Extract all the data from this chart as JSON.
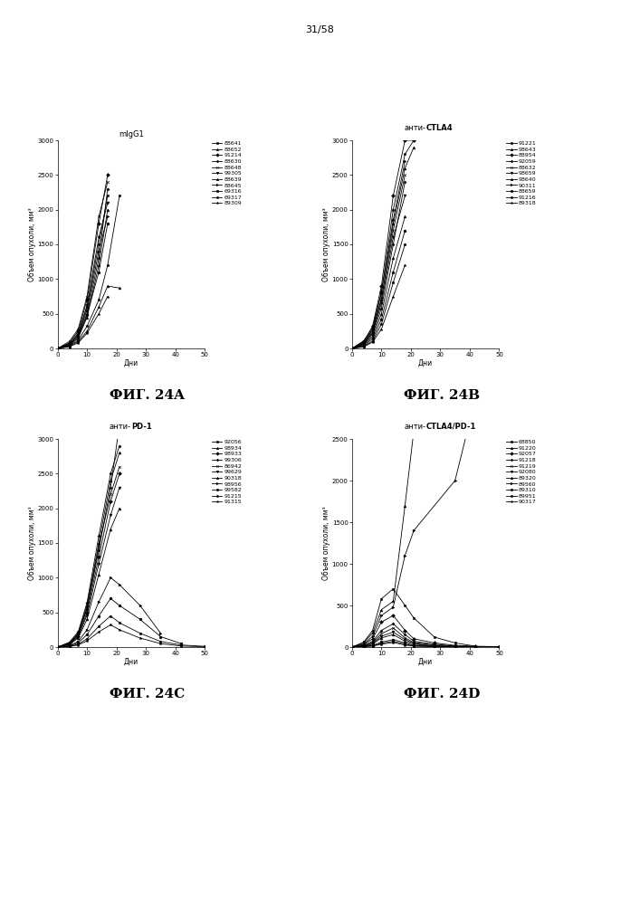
{
  "page_label": "31/58",
  "panels": [
    {
      "title": "mIgG1",
      "title_bold_part": null,
      "fig_label": "ФИГ. 24A",
      "ylabel": "Объем опухоли, мм³",
      "xlabel": "Дни",
      "ylim": [
        0,
        3000
      ],
      "xlim": [
        0,
        50
      ],
      "yticks": [
        0,
        500,
        1000,
        1500,
        2000,
        2500,
        3000
      ],
      "xticks": [
        0,
        10,
        20,
        30,
        40,
        50
      ],
      "legend_labels": [
        "88641",
        "88652",
        "91214",
        "88630",
        "88648",
        "99305",
        "88639",
        "88645",
        "69316",
        "69317",
        "89309"
      ],
      "series": [
        {
          "x": [
            0,
            4,
            7,
            10,
            14,
            17
          ],
          "y": [
            0,
            50,
            200,
            600,
            1500,
            2200
          ]
        },
        {
          "x": [
            0,
            4,
            7,
            10,
            14,
            17
          ],
          "y": [
            0,
            40,
            150,
            450,
            1200,
            2000
          ]
        },
        {
          "x": [
            0,
            4,
            7,
            10,
            14,
            17
          ],
          "y": [
            0,
            80,
            250,
            700,
            1800,
            2500
          ]
        },
        {
          "x": [
            0,
            4,
            7,
            10,
            14,
            17
          ],
          "y": [
            0,
            60,
            180,
            500,
            1300,
            2300
          ]
        },
        {
          "x": [
            0,
            4,
            7,
            10,
            14,
            17
          ],
          "y": [
            0,
            100,
            280,
            750,
            1900,
            2400
          ]
        },
        {
          "x": [
            0,
            4,
            7,
            10,
            14,
            17
          ],
          "y": [
            0,
            70,
            220,
            620,
            1600,
            2100
          ]
        },
        {
          "x": [
            0,
            4,
            7,
            10,
            14,
            17,
            21
          ],
          "y": [
            0,
            30,
            100,
            250,
            600,
            900,
            870
          ]
        },
        {
          "x": [
            0,
            4,
            7,
            10,
            14,
            17
          ],
          "y": [
            0,
            60,
            190,
            550,
            1400,
            1900
          ]
        },
        {
          "x": [
            0,
            4,
            7,
            10,
            14,
            17
          ],
          "y": [
            0,
            50,
            160,
            480,
            1100,
            1800
          ]
        },
        {
          "x": [
            0,
            4,
            7,
            10,
            14,
            17,
            21
          ],
          "y": [
            0,
            35,
            120,
            320,
            700,
            1200,
            2200
          ]
        },
        {
          "x": [
            0,
            4,
            7,
            10,
            14,
            17
          ],
          "y": [
            0,
            25,
            80,
            220,
            500,
            750
          ]
        }
      ]
    },
    {
      "title": "анти-",
      "title_bold_part": "CTLA4",
      "fig_label": "ФИГ. 24B",
      "ylabel": "Объем опухоли, мм³",
      "xlabel": "Дни",
      "ylim": [
        0,
        3000
      ],
      "xlim": [
        0,
        50
      ],
      "yticks": [
        0,
        500,
        1000,
        1500,
        2000,
        2500,
        3000
      ],
      "xticks": [
        0,
        10,
        20,
        30,
        40,
        50
      ],
      "legend_labels": [
        "91221",
        "98643",
        "88954",
        "92059",
        "88632",
        "98659",
        "98640",
        "90311",
        "88659",
        "91216",
        "89318"
      ],
      "series": [
        {
          "x": [
            0,
            4,
            7,
            10,
            14,
            18,
            21
          ],
          "y": [
            0,
            80,
            280,
            800,
            2000,
            2800,
            3000
          ]
        },
        {
          "x": [
            0,
            4,
            7,
            10,
            14,
            18,
            21
          ],
          "y": [
            0,
            70,
            240,
            700,
            1800,
            2600,
            2900
          ]
        },
        {
          "x": [
            0,
            4,
            7,
            10,
            14,
            18,
            21
          ],
          "y": [
            0,
            100,
            320,
            900,
            2200,
            3000,
            3000
          ]
        },
        {
          "x": [
            0,
            4,
            7,
            10,
            14,
            18
          ],
          "y": [
            0,
            60,
            200,
            580,
            1500,
            2400
          ]
        },
        {
          "x": [
            0,
            4,
            7,
            10,
            14,
            18
          ],
          "y": [
            0,
            90,
            260,
            720,
            1700,
            2500
          ]
        },
        {
          "x": [
            0,
            4,
            7,
            10,
            14,
            18
          ],
          "y": [
            0,
            75,
            220,
            650,
            1600,
            2200
          ]
        },
        {
          "x": [
            0,
            4,
            7,
            10,
            14,
            18
          ],
          "y": [
            0,
            50,
            170,
            500,
            1300,
            1900
          ]
        },
        {
          "x": [
            0,
            4,
            7,
            10,
            14,
            18
          ],
          "y": [
            0,
            110,
            300,
            820,
            1850,
            2700
          ]
        },
        {
          "x": [
            0,
            4,
            7,
            10,
            14,
            18
          ],
          "y": [
            0,
            40,
            140,
            420,
            1100,
            1700
          ]
        },
        {
          "x": [
            0,
            4,
            7,
            10,
            14,
            18
          ],
          "y": [
            0,
            30,
            110,
            350,
            950,
            1500
          ]
        },
        {
          "x": [
            0,
            4,
            7,
            10,
            14,
            18
          ],
          "y": [
            0,
            25,
            90,
            280,
            750,
            1200
          ]
        }
      ]
    },
    {
      "title": "анти-",
      "title_bold_part": "PD-1",
      "fig_label": "ФИГ. 24C",
      "ylabel": "Объем опухоли, мм³",
      "xlabel": "Дни",
      "ylim": [
        0,
        3000
      ],
      "xlim": [
        0,
        50
      ],
      "yticks": [
        0,
        500,
        1000,
        1500,
        2000,
        2500,
        3000
      ],
      "xticks": [
        0,
        10,
        20,
        30,
        40,
        50
      ],
      "legend_labels": [
        "92056",
        "98934",
        "98933",
        "99306",
        "86942",
        "99629",
        "90318",
        "98956",
        "99582",
        "91215",
        "91315"
      ],
      "series": [
        {
          "x": [
            0,
            4,
            7,
            10,
            14,
            18,
            21
          ],
          "y": [
            0,
            50,
            180,
            550,
            1400,
            2300,
            3200
          ]
        },
        {
          "x": [
            0,
            4,
            7,
            10,
            14,
            18,
            21
          ],
          "y": [
            0,
            60,
            200,
            600,
            1500,
            2400,
            2800
          ]
        },
        {
          "x": [
            0,
            4,
            7,
            10,
            14,
            18,
            21
          ],
          "y": [
            0,
            45,
            160,
            500,
            1300,
            2100,
            2500
          ]
        },
        {
          "x": [
            0,
            4,
            7,
            10,
            14,
            18,
            21
          ],
          "y": [
            0,
            70,
            220,
            640,
            1600,
            2500,
            2900
          ]
        },
        {
          "x": [
            0,
            4,
            7,
            10,
            14,
            18,
            21
          ],
          "y": [
            0,
            55,
            190,
            570,
            1450,
            2200,
            2600
          ]
        },
        {
          "x": [
            0,
            4,
            7,
            10,
            14,
            18,
            21
          ],
          "y": [
            0,
            40,
            150,
            460,
            1200,
            1900,
            2300
          ]
        },
        {
          "x": [
            0,
            4,
            7,
            10,
            14,
            18,
            21
          ],
          "y": [
            0,
            35,
            130,
            400,
            1050,
            1700,
            2000
          ]
        },
        {
          "x": [
            0,
            4,
            7,
            10,
            14,
            18,
            21,
            28,
            35
          ],
          "y": [
            0,
            20,
            80,
            250,
            650,
            1000,
            900,
            600,
            200
          ]
        },
        {
          "x": [
            0,
            4,
            7,
            10,
            14,
            18,
            21,
            28,
            35,
            42
          ],
          "y": [
            0,
            15,
            60,
            180,
            450,
            700,
            600,
            400,
            150,
            50
          ]
        },
        {
          "x": [
            0,
            4,
            7,
            10,
            14,
            18,
            21,
            28,
            35,
            42,
            50
          ],
          "y": [
            0,
            10,
            40,
            120,
            300,
            450,
            350,
            200,
            80,
            30,
            10
          ]
        },
        {
          "x": [
            0,
            4,
            7,
            10,
            14,
            18,
            21,
            28,
            35,
            42,
            50
          ],
          "y": [
            0,
            8,
            30,
            90,
            220,
            320,
            250,
            130,
            50,
            15,
            5
          ]
        }
      ]
    },
    {
      "title": "анти-",
      "title_bold_part": "CTLA4/PD-1",
      "fig_label": "ФИГ. 24D",
      "ylabel": "Объем опухоли, мм³",
      "xlabel": "Дни",
      "ylim": [
        0,
        2500
      ],
      "xlim": [
        0,
        50
      ],
      "yticks": [
        0,
        500,
        1000,
        1500,
        2000,
        2500
      ],
      "xticks": [
        0,
        10,
        20,
        30,
        40,
        50
      ],
      "legend_labels": [
        "68850",
        "91220",
        "92057",
        "91218",
        "91219",
        "92080",
        "89320",
        "89560",
        "89310",
        "89951",
        "90317"
      ],
      "series": [
        {
          "x": [
            0,
            4,
            7,
            10,
            14,
            18,
            21,
            28,
            35,
            42
          ],
          "y": [
            0,
            60,
            200,
            580,
            700,
            500,
            350,
            120,
            50,
            10
          ]
        },
        {
          "x": [
            0,
            4,
            7,
            10,
            14,
            18,
            21,
            35,
            42
          ],
          "y": [
            0,
            50,
            170,
            450,
            550,
            1700,
            2600,
            3000,
            3200
          ]
        },
        {
          "x": [
            0,
            4,
            7,
            10,
            14,
            18,
            21,
            28,
            35,
            42,
            50
          ],
          "y": [
            0,
            30,
            100,
            300,
            380,
            200,
            100,
            50,
            20,
            10,
            5
          ]
        },
        {
          "x": [
            0,
            4,
            7,
            10,
            14,
            18,
            21,
            28,
            35,
            42,
            50
          ],
          "y": [
            0,
            20,
            70,
            200,
            280,
            150,
            70,
            35,
            10,
            5,
            5
          ]
        },
        {
          "x": [
            0,
            4,
            7,
            10,
            14,
            18,
            21,
            28,
            35,
            42,
            50
          ],
          "y": [
            0,
            15,
            55,
            160,
            230,
            110,
            55,
            25,
            10,
            5,
            5
          ]
        },
        {
          "x": [
            0,
            4,
            7,
            10,
            14,
            18,
            21,
            28,
            35,
            42,
            50
          ],
          "y": [
            0,
            10,
            45,
            130,
            180,
            90,
            45,
            15,
            5,
            5,
            5
          ]
        },
        {
          "x": [
            0,
            4,
            7,
            10,
            14,
            18,
            21,
            28,
            35,
            42,
            50
          ],
          "y": [
            0,
            8,
            35,
            110,
            150,
            70,
            35,
            12,
            5,
            5,
            5
          ]
        },
        {
          "x": [
            0,
            4,
            7,
            10,
            14,
            18,
            21,
            35,
            42
          ],
          "y": [
            0,
            35,
            130,
            380,
            480,
            1100,
            1400,
            2000,
            3000
          ]
        },
        {
          "x": [
            0,
            4,
            7,
            10,
            14,
            18,
            21,
            28,
            35,
            42,
            50
          ],
          "y": [
            0,
            5,
            20,
            60,
            90,
            50,
            20,
            10,
            5,
            5,
            5
          ]
        },
        {
          "x": [
            0,
            4,
            7,
            10,
            14,
            18,
            21,
            28,
            35,
            42,
            50
          ],
          "y": [
            0,
            5,
            15,
            45,
            70,
            35,
            15,
            5,
            5,
            5,
            5
          ]
        },
        {
          "x": [
            0,
            4,
            7,
            10,
            14,
            18,
            21,
            28,
            35,
            42,
            50
          ],
          "y": [
            0,
            5,
            12,
            35,
            55,
            25,
            10,
            5,
            5,
            5,
            5
          ]
        }
      ]
    }
  ],
  "background_color": "#ffffff",
  "fontsize_title": 6,
  "fontsize_label": 5.5,
  "fontsize_tick": 5,
  "fontsize_legend": 4.5,
  "fontsize_figlabel": 11
}
